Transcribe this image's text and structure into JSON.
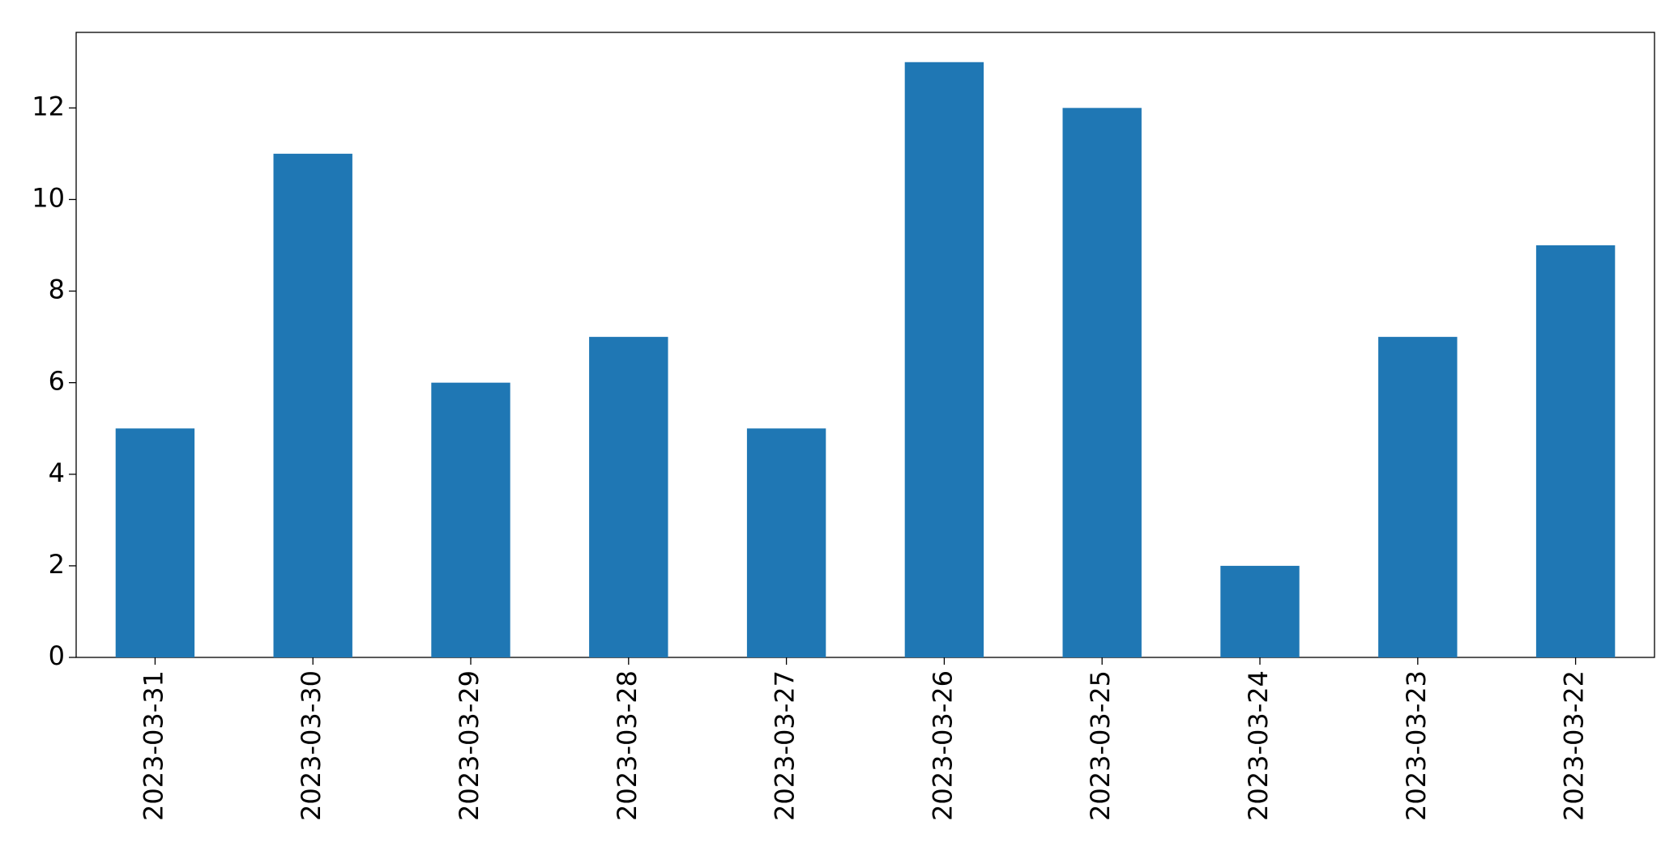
{
  "chart_data": {
    "type": "bar",
    "categories": [
      "2023-03-31",
      "2023-03-30",
      "2023-03-29",
      "2023-03-28",
      "2023-03-27",
      "2023-03-26",
      "2023-03-25",
      "2023-03-24",
      "2023-03-23",
      "2023-03-22"
    ],
    "values": [
      5,
      11,
      6,
      7,
      5,
      13,
      12,
      2,
      7,
      9
    ],
    "color": "#1f77b4",
    "ylim": [
      0,
      13.65
    ],
    "yticks": [
      0,
      2,
      4,
      6,
      8,
      10,
      12
    ],
    "grid": false
  }
}
